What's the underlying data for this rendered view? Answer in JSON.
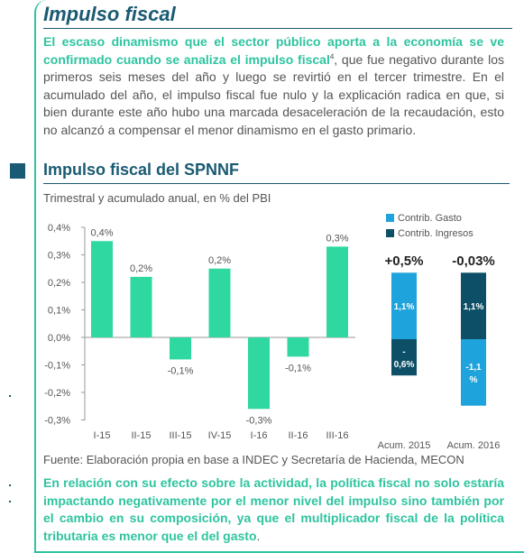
{
  "header": {
    "title": "Impulso fiscal"
  },
  "intro": {
    "highlight": "El escaso dinamismo que el sector público aporta a la economía se ve confirmado cuando se analiza el impulso fiscal",
    "footnote": "4",
    "rest": ", que fue negativo durante los primeros seis meses del año y luego se revirtió en el tercer trimestre. En el acumulado del año, el impulso fiscal fue nulo y la explicación radica en que, si bien durante este año hubo una marcada desaceleración de la recaudación, esto no alcanzó a compensar el menor dinamismo en el gasto primario."
  },
  "section": {
    "title": "Impulso fiscal del SPNNF",
    "subtitle": "Trimestral y acumulado anual, en % del PBI"
  },
  "chart_data": [
    {
      "type": "bar",
      "ylim": [
        -0.3,
        0.4
      ],
      "yticks": [
        "0,4%",
        "0,3%",
        "0,2%",
        "0,1%",
        "0,0%",
        "-0,1%",
        "-0,2%",
        "-0,3%"
      ],
      "ytick_values": [
        0.4,
        0.3,
        0.2,
        0.1,
        0.0,
        -0.1,
        -0.2,
        -0.3
      ],
      "categories": [
        "I-15",
        "II-15",
        "III-15",
        "IV-15",
        "I-16",
        "II-16",
        "III-16"
      ],
      "values": [
        0.35,
        0.22,
        -0.08,
        0.25,
        -0.26,
        -0.07,
        0.33
      ],
      "data_labels": [
        "0,4%",
        "0,2%",
        "-0,1%",
        "0,2%",
        "-0,3%",
        "-0,1%",
        "0,3%"
      ],
      "color": "#2ed8a0"
    },
    {
      "type": "bar",
      "stacked": true,
      "categories": [
        "Acum. 2015",
        "Acum. 2016"
      ],
      "totals": [
        "+0,5%",
        "-0,03%"
      ],
      "series": [
        {
          "name": "Contrib. Gasto",
          "color": "#1fa3dc",
          "values": [
            1.1,
            -1.1
          ],
          "labels": [
            "1,1%",
            "-1,1\n%"
          ]
        },
        {
          "name": "Contrib. Ingresos",
          "color": "#0d4f66",
          "values": [
            -0.6,
            1.1
          ],
          "labels": [
            "-\n0,6%",
            "1,1%"
          ]
        }
      ],
      "legend_position": "top"
    }
  ],
  "source": "Fuente: Elaboración propia en base a INDEC y Secretaría de Hacienda, MECON",
  "conclusion": {
    "text": "En relación con su efecto sobre la actividad, la política fiscal no solo estaría impactando negativamente por el menor nivel del impulso sino también por el cambio en su composición, ya que el multiplicador fiscal de la política tributaria es menor que el del gasto",
    "tail": "."
  },
  "colors": {
    "accent": "#2ec4a0",
    "title": "#1a5a72",
    "text": "#555555"
  }
}
